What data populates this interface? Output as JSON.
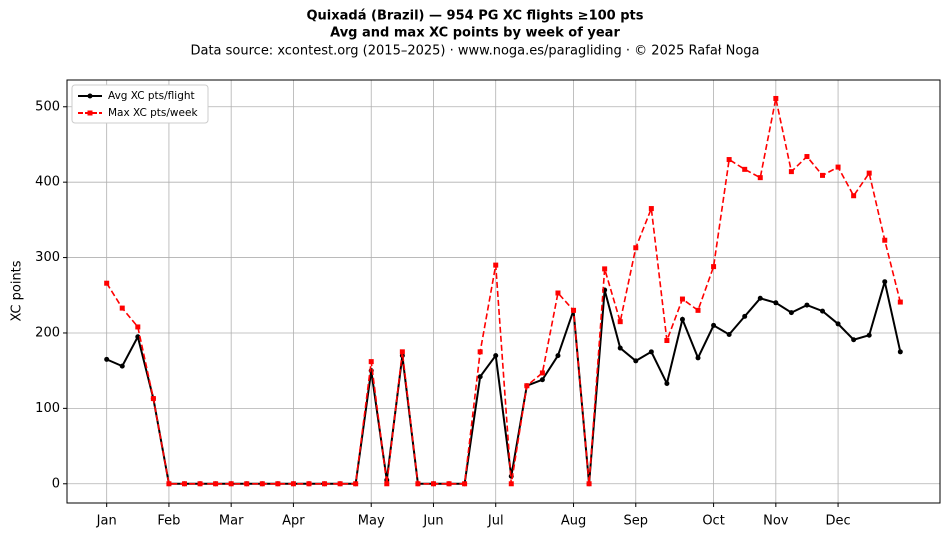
{
  "chart_data": {
    "type": "line",
    "title": "Quixadá (Brazil)  —  954 PG XC flights ≥100 pts",
    "subtitle": "Avg and max XC points by week of year",
    "source": "Data source: xcontest.org (2015–2025)  ·  www.noga.es/paragliding  ·  © 2025 Rafał Noga",
    "y_label": "XC points",
    "x": [
      1,
      2,
      3,
      4,
      5,
      6,
      7,
      8,
      9,
      10,
      11,
      12,
      13,
      14,
      15,
      16,
      17,
      18,
      19,
      20,
      21,
      22,
      23,
      24,
      25,
      26,
      27,
      28,
      29,
      30,
      31,
      32,
      33,
      34,
      35,
      36,
      37,
      38,
      39,
      40,
      41,
      42,
      43,
      44,
      45,
      46,
      47,
      48,
      49,
      50,
      51,
      52
    ],
    "series": [
      {
        "name": "Avg XC pts/flight",
        "color": "#000000",
        "marker": "circle",
        "dash": "solid",
        "values": [
          165,
          156,
          195,
          113,
          0,
          0,
          0,
          0,
          0,
          0,
          0,
          0,
          0,
          0,
          0,
          0,
          0,
          150,
          5,
          170,
          0,
          0,
          0,
          0,
          142,
          170,
          10,
          130,
          138,
          170,
          230,
          0,
          257,
          180,
          163,
          175,
          133,
          218,
          167,
          210,
          198,
          222,
          246,
          240,
          227,
          237,
          229,
          212,
          191,
          197,
          268,
          175
        ]
      },
      {
        "name": "Max XC pts/week",
        "color": "#ff0000",
        "marker": "square",
        "dash": "dashed",
        "values": [
          266,
          233,
          208,
          113,
          0,
          0,
          0,
          0,
          0,
          0,
          0,
          0,
          0,
          0,
          0,
          0,
          0,
          162,
          0,
          175,
          0,
          0,
          0,
          0,
          175,
          290,
          0,
          130,
          147,
          253,
          230,
          0,
          285,
          215,
          313,
          365,
          190,
          245,
          230,
          288,
          430,
          417,
          406,
          511,
          414,
          434,
          409,
          420,
          382,
          412,
          323,
          241
        ]
      }
    ],
    "xlim": [
      -1.55,
      54.55
    ],
    "xticks": [
      {
        "value": 1,
        "label": "Jan"
      },
      {
        "value": 5,
        "label": "Feb"
      },
      {
        "value": 9,
        "label": "Mar"
      },
      {
        "value": 13,
        "label": "Apr"
      },
      {
        "value": 18,
        "label": "May"
      },
      {
        "value": 22,
        "label": "Jun"
      },
      {
        "value": 26,
        "label": "Jul"
      },
      {
        "value": 31,
        "label": "Aug"
      },
      {
        "value": 35,
        "label": "Sep"
      },
      {
        "value": 40,
        "label": "Oct"
      },
      {
        "value": 44,
        "label": "Nov"
      },
      {
        "value": 48,
        "label": "Dec"
      }
    ],
    "ylim": [
      -25.5,
      535.5
    ],
    "yticks": [
      0,
      100,
      200,
      300,
      400,
      500
    ],
    "grid": true,
    "legend": "upper left"
  }
}
